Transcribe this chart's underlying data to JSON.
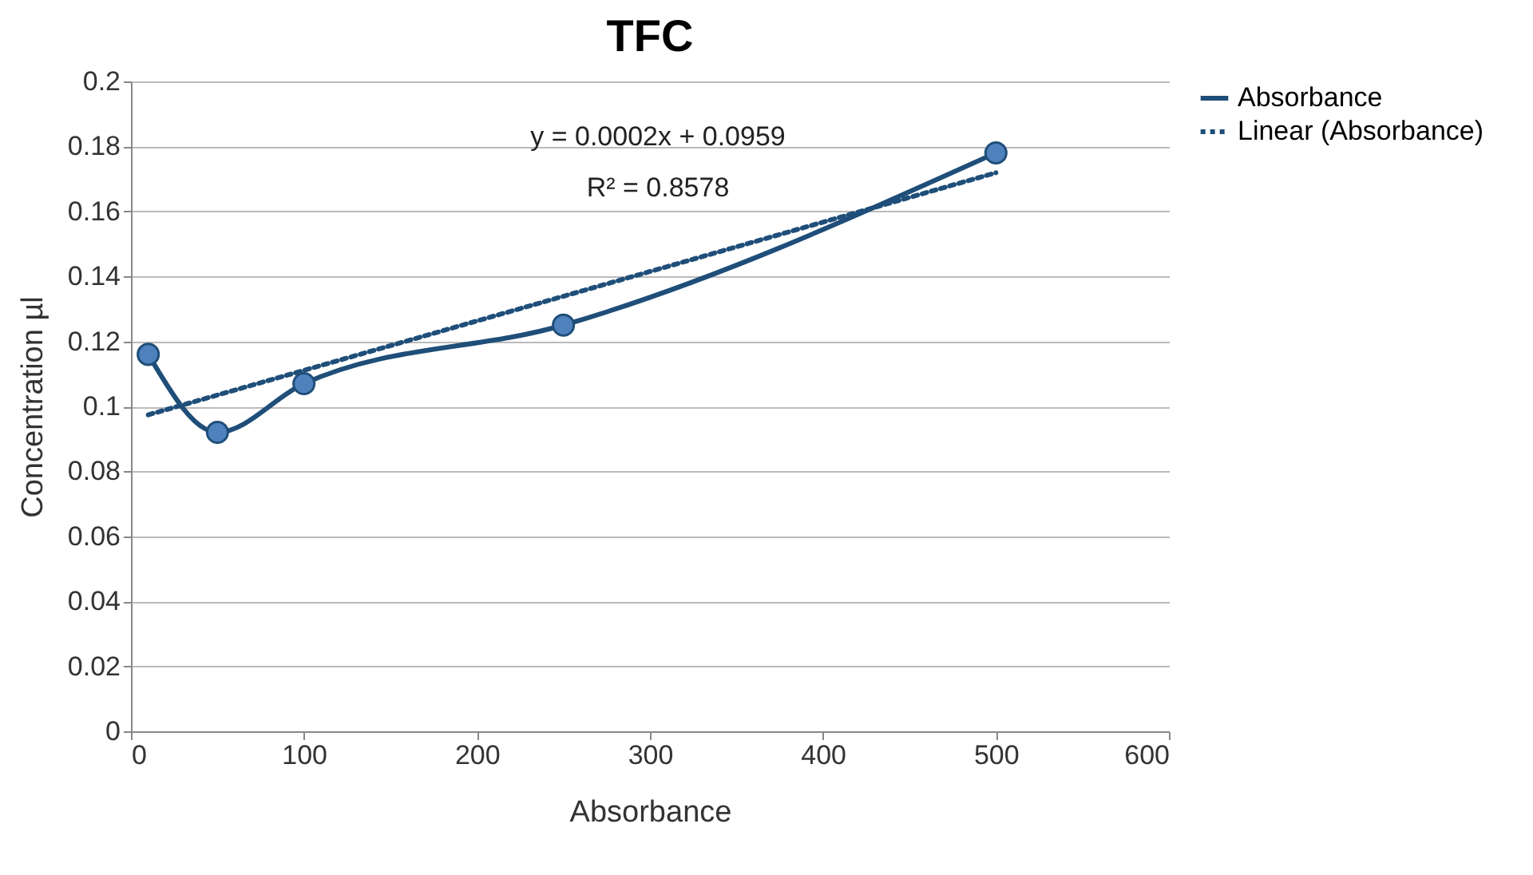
{
  "chart_data": {
    "type": "line",
    "title": "TFC",
    "xlabel": "Absorbance",
    "ylabel": "Concentration µl",
    "x": [
      10,
      50,
      100,
      250,
      500
    ],
    "series": [
      {
        "name": "Absorbance",
        "color": "#1f4e79",
        "values": [
          0.116,
          0.092,
          0.107,
          0.125,
          0.178
        ],
        "marker": "circle",
        "line_style": "solid"
      },
      {
        "name": "Linear (Absorbance)",
        "type": "line",
        "color": "#1f4e79",
        "x": [
          10,
          500
        ],
        "values": [
          0.0974,
          0.1719
        ],
        "marker": "none",
        "line_style": "dotted"
      }
    ],
    "annotations": [
      "y = 0.0002x + 0.0959",
      "R² = 0.8578"
    ],
    "xlim": [
      0,
      600
    ],
    "xticks": [
      0,
      100,
      200,
      300,
      400,
      500,
      600
    ],
    "ylim": [
      0,
      0.2
    ],
    "yticks": [
      0,
      0.02,
      0.04,
      0.06,
      0.08,
      0.1,
      0.12,
      0.14,
      0.16,
      0.18,
      0.2
    ],
    "grid": "y",
    "legend": "right"
  }
}
